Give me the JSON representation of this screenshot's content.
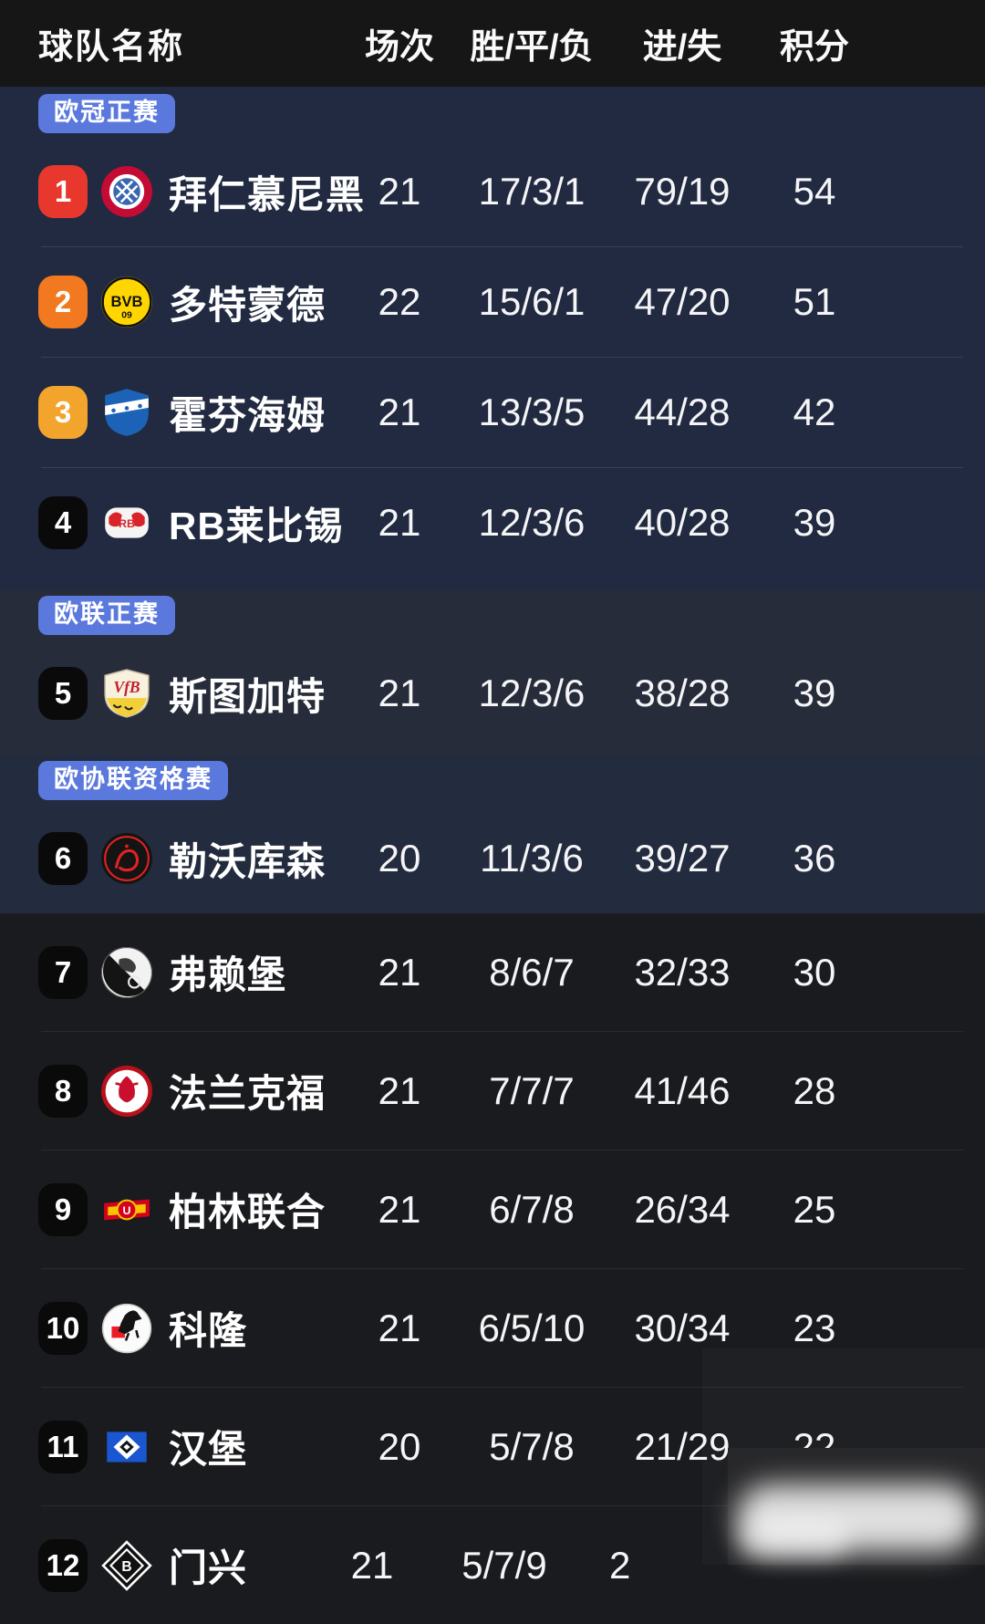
{
  "header": {
    "team_col": "球队名称",
    "cols": [
      "场次",
      "胜/平/负",
      "进/失",
      "积分"
    ]
  },
  "label_badge_color": "#5b79dd",
  "sections": [
    {
      "label": "欧冠正赛",
      "kind": "cl",
      "rows": [
        {
          "rank": "1",
          "rank_bg": "#e8382e",
          "team": "拜仁慕尼黑",
          "crest": "bayern",
          "played": "21",
          "wdl": "17/3/1",
          "goals": "79/19",
          "points": "54"
        },
        {
          "rank": "2",
          "rank_bg": "#f2791f",
          "team": "多特蒙德",
          "crest": "dortmund",
          "played": "22",
          "wdl": "15/6/1",
          "goals": "47/20",
          "points": "51"
        },
        {
          "rank": "3",
          "rank_bg": "#f2a42d",
          "team": "霍芬海姆",
          "crest": "hoffenheim",
          "played": "21",
          "wdl": "13/3/5",
          "goals": "44/28",
          "points": "42"
        },
        {
          "rank": "4",
          "rank_bg": "#0a0a0b",
          "team": "RB莱比锡",
          "crest": "leipzig",
          "played": "21",
          "wdl": "12/3/6",
          "goals": "40/28",
          "points": "39"
        }
      ]
    },
    {
      "label": "欧联正赛",
      "kind": "el",
      "rows": [
        {
          "rank": "5",
          "rank_bg": "#0a0a0b",
          "team": "斯图加特",
          "crest": "stuttgart",
          "played": "21",
          "wdl": "12/3/6",
          "goals": "38/28",
          "points": "39"
        }
      ]
    },
    {
      "label": "欧协联资格赛",
      "kind": "conf",
      "rows": [
        {
          "rank": "6",
          "rank_bg": "#0a0a0b",
          "team": "勒沃库森",
          "crest": "leverkusen",
          "played": "20",
          "wdl": "11/3/6",
          "goals": "39/27",
          "points": "36"
        }
      ]
    },
    {
      "label": "",
      "kind": "rest",
      "rows": [
        {
          "rank": "7",
          "rank_bg": "#0a0a0b",
          "team": "弗赖堡",
          "crest": "freiburg",
          "played": "21",
          "wdl": "8/6/7",
          "goals": "32/33",
          "points": "30"
        },
        {
          "rank": "8",
          "rank_bg": "#0a0a0b",
          "team": "法兰克福",
          "crest": "frankfurt",
          "played": "21",
          "wdl": "7/7/7",
          "goals": "41/46",
          "points": "28"
        },
        {
          "rank": "9",
          "rank_bg": "#0a0a0b",
          "team": "柏林联合",
          "crest": "union-berlin",
          "played": "21",
          "wdl": "6/7/8",
          "goals": "26/34",
          "points": "25"
        },
        {
          "rank": "10",
          "rank_bg": "#0a0a0b",
          "team": "科隆",
          "crest": "koln",
          "played": "21",
          "wdl": "6/5/10",
          "goals": "30/34",
          "points": "23"
        },
        {
          "rank": "11",
          "rank_bg": "#0a0a0b",
          "team": "汉堡",
          "crest": "hamburg",
          "played": "20",
          "wdl": "5/7/8",
          "goals": "21/29",
          "points": "22"
        },
        {
          "rank": "12",
          "rank_bg": "#0a0a0b",
          "team": "门兴",
          "crest": "gladbach",
          "played": "21",
          "wdl": "5/7/9",
          "goals": "2",
          "points": "",
          "obscured": true
        }
      ]
    }
  ],
  "watermark": {
    "blurred": true
  }
}
